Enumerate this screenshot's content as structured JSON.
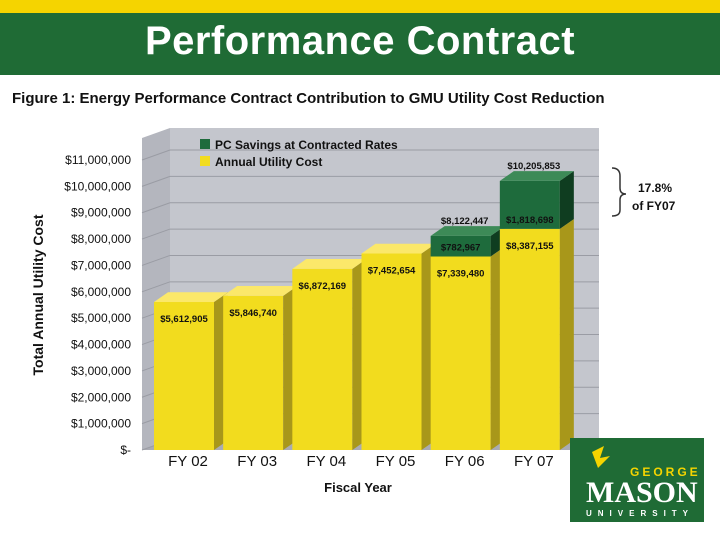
{
  "header": {
    "title": "Performance Contract"
  },
  "figure": {
    "caption": "Figure 1: Energy Performance Contract Contribution to GMU Utility Cost Reduction"
  },
  "logo": {
    "line1": "GEORGE",
    "line2": "MASON",
    "line3": "UNIVERSITY"
  },
  "annotation": {
    "percent": "17.8%",
    "of": "of FY07"
  },
  "colors": {
    "title_bar": "#1f6b35",
    "top_stripe": "#f5d400",
    "utility": "#f2dc1e",
    "savings": "#1e6b3c"
  },
  "chart_data": {
    "type": "bar",
    "stacked": true,
    "categories": [
      "FY 02",
      "FY 03",
      "FY 04",
      "FY 05",
      "FY 06",
      "FY 07"
    ],
    "series": [
      {
        "name": "Annual Utility Cost",
        "values": [
          5612905,
          5846740,
          6872169,
          7452654,
          7339480,
          8387155
        ],
        "labels": [
          "$5,612,905",
          "$5,846,740",
          "$6,872,169",
          "$7,452,654",
          "$7,339,480",
          "$8,387,155"
        ]
      },
      {
        "name": "PC Savings at Contracted Rates",
        "values": [
          0,
          0,
          0,
          0,
          782967,
          1818698
        ],
        "labels": [
          "",
          "",
          "",
          "",
          "$782,967",
          "$1,818,698"
        ]
      }
    ],
    "totals": [
      "",
      "",
      "",
      "",
      "$8,122,447",
      "$10,205,853"
    ],
    "xlabel": "Fiscal Year",
    "ylabel": "Total Annual Utility Cost",
    "ylim": [
      0,
      11000000
    ],
    "yticks": [
      0,
      1000000,
      2000000,
      3000000,
      4000000,
      5000000,
      6000000,
      7000000,
      8000000,
      9000000,
      10000000,
      11000000
    ],
    "ytick_labels": [
      "$-",
      "$1,000,000",
      "$2,000,000",
      "$3,000,000",
      "$4,000,000",
      "$5,000,000",
      "$6,000,000",
      "$7,000,000",
      "$8,000,000",
      "$9,000,000",
      "$10,000,000",
      "$11,000,000"
    ],
    "legend_position": "top-left"
  }
}
